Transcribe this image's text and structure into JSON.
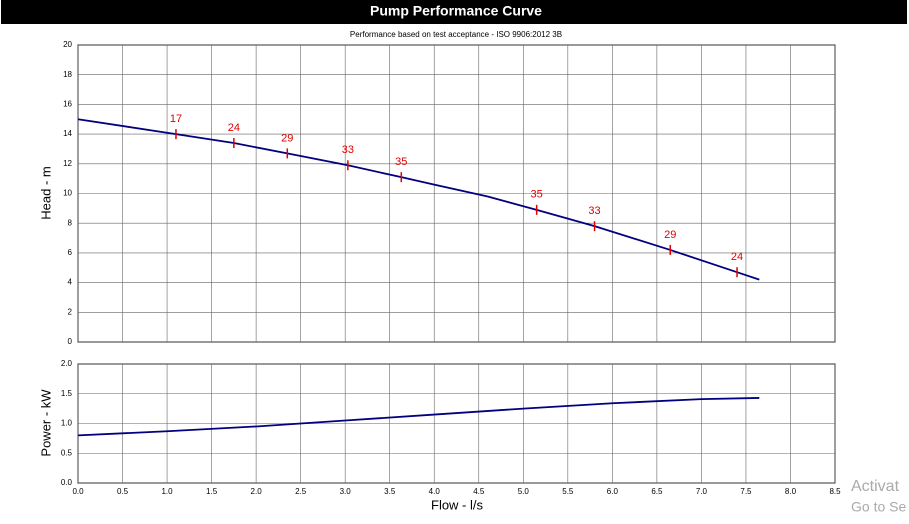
{
  "chart_data": [
    {
      "type": "line",
      "title": "Pump Performance Curve",
      "subtitle": "Performance based on test acceptance - ISO 9906:2012 3B",
      "ylabel": "Head - m",
      "x": [
        0,
        1.1,
        1.75,
        2.35,
        3.03,
        3.63,
        4.0,
        4.6,
        5.15,
        5.8,
        6.65,
        7.4,
        7.65
      ],
      "series": [
        {
          "color": "#000080",
          "values": [
            15,
            14.0,
            13.4,
            12.7,
            11.9,
            11.1,
            10.6,
            9.8,
            8.9,
            7.8,
            6.2,
            4.7,
            4.2
          ]
        }
      ],
      "points": {
        "x": [
          1.1,
          1.75,
          2.35,
          3.03,
          3.63,
          5.15,
          5.8,
          6.65,
          7.4
        ],
        "values": [
          14.0,
          13.4,
          12.7,
          11.9,
          11.1,
          8.9,
          7.8,
          6.2,
          4.7
        ],
        "labels": [
          17,
          24,
          29,
          33,
          35,
          35,
          33,
          29,
          24
        ],
        "color": "#e00000"
      },
      "xlim": [
        0,
        8.5
      ],
      "xticks": [
        0,
        0.5,
        1,
        1.5,
        2,
        2.5,
        3,
        3.5,
        4,
        4.5,
        5,
        5.5,
        6,
        6.5,
        7,
        7.5,
        8,
        8.5
      ],
      "ylim": [
        0,
        20
      ],
      "yticks": [
        0,
        2,
        4,
        6,
        8,
        10,
        12,
        14,
        16,
        18,
        20
      ],
      "grid": true
    },
    {
      "type": "line",
      "ylabel": "Power - kW",
      "xlabel": "Flow - l/s",
      "x": [
        0,
        1,
        2,
        3,
        4,
        5,
        6,
        7,
        7.65
      ],
      "series": [
        {
          "color": "#000080",
          "values": [
            0.8,
            0.87,
            0.95,
            1.05,
            1.15,
            1.25,
            1.34,
            1.41,
            1.43
          ]
        }
      ],
      "xlim": [
        0,
        8.5
      ],
      "xticks": [
        {
          "value": 0,
          "label": "0.0"
        },
        0.5,
        {
          "value": 1,
          "label": "1.0"
        },
        1.5,
        {
          "value": 2,
          "label": "2.0"
        },
        2.5,
        {
          "value": 3,
          "label": "3.0"
        },
        3.5,
        {
          "value": 4,
          "label": "4.0"
        },
        4.5,
        {
          "value": 5,
          "label": "5.0"
        },
        5.5,
        {
          "value": 6,
          "label": "6.0"
        },
        6.5,
        {
          "value": 7,
          "label": "7.0"
        },
        7.5,
        {
          "value": 8,
          "label": "8.0"
        },
        8.5
      ],
      "ylim": [
        0,
        2
      ],
      "yticks": [
        {
          "value": 0,
          "label": "0.0"
        },
        0.5,
        {
          "value": 1,
          "label": "1.0"
        },
        1.5,
        {
          "value": 2,
          "label": "2.0"
        }
      ],
      "grid": true
    }
  ],
  "overlay": [
    "Activat",
    "Go to Se"
  ]
}
